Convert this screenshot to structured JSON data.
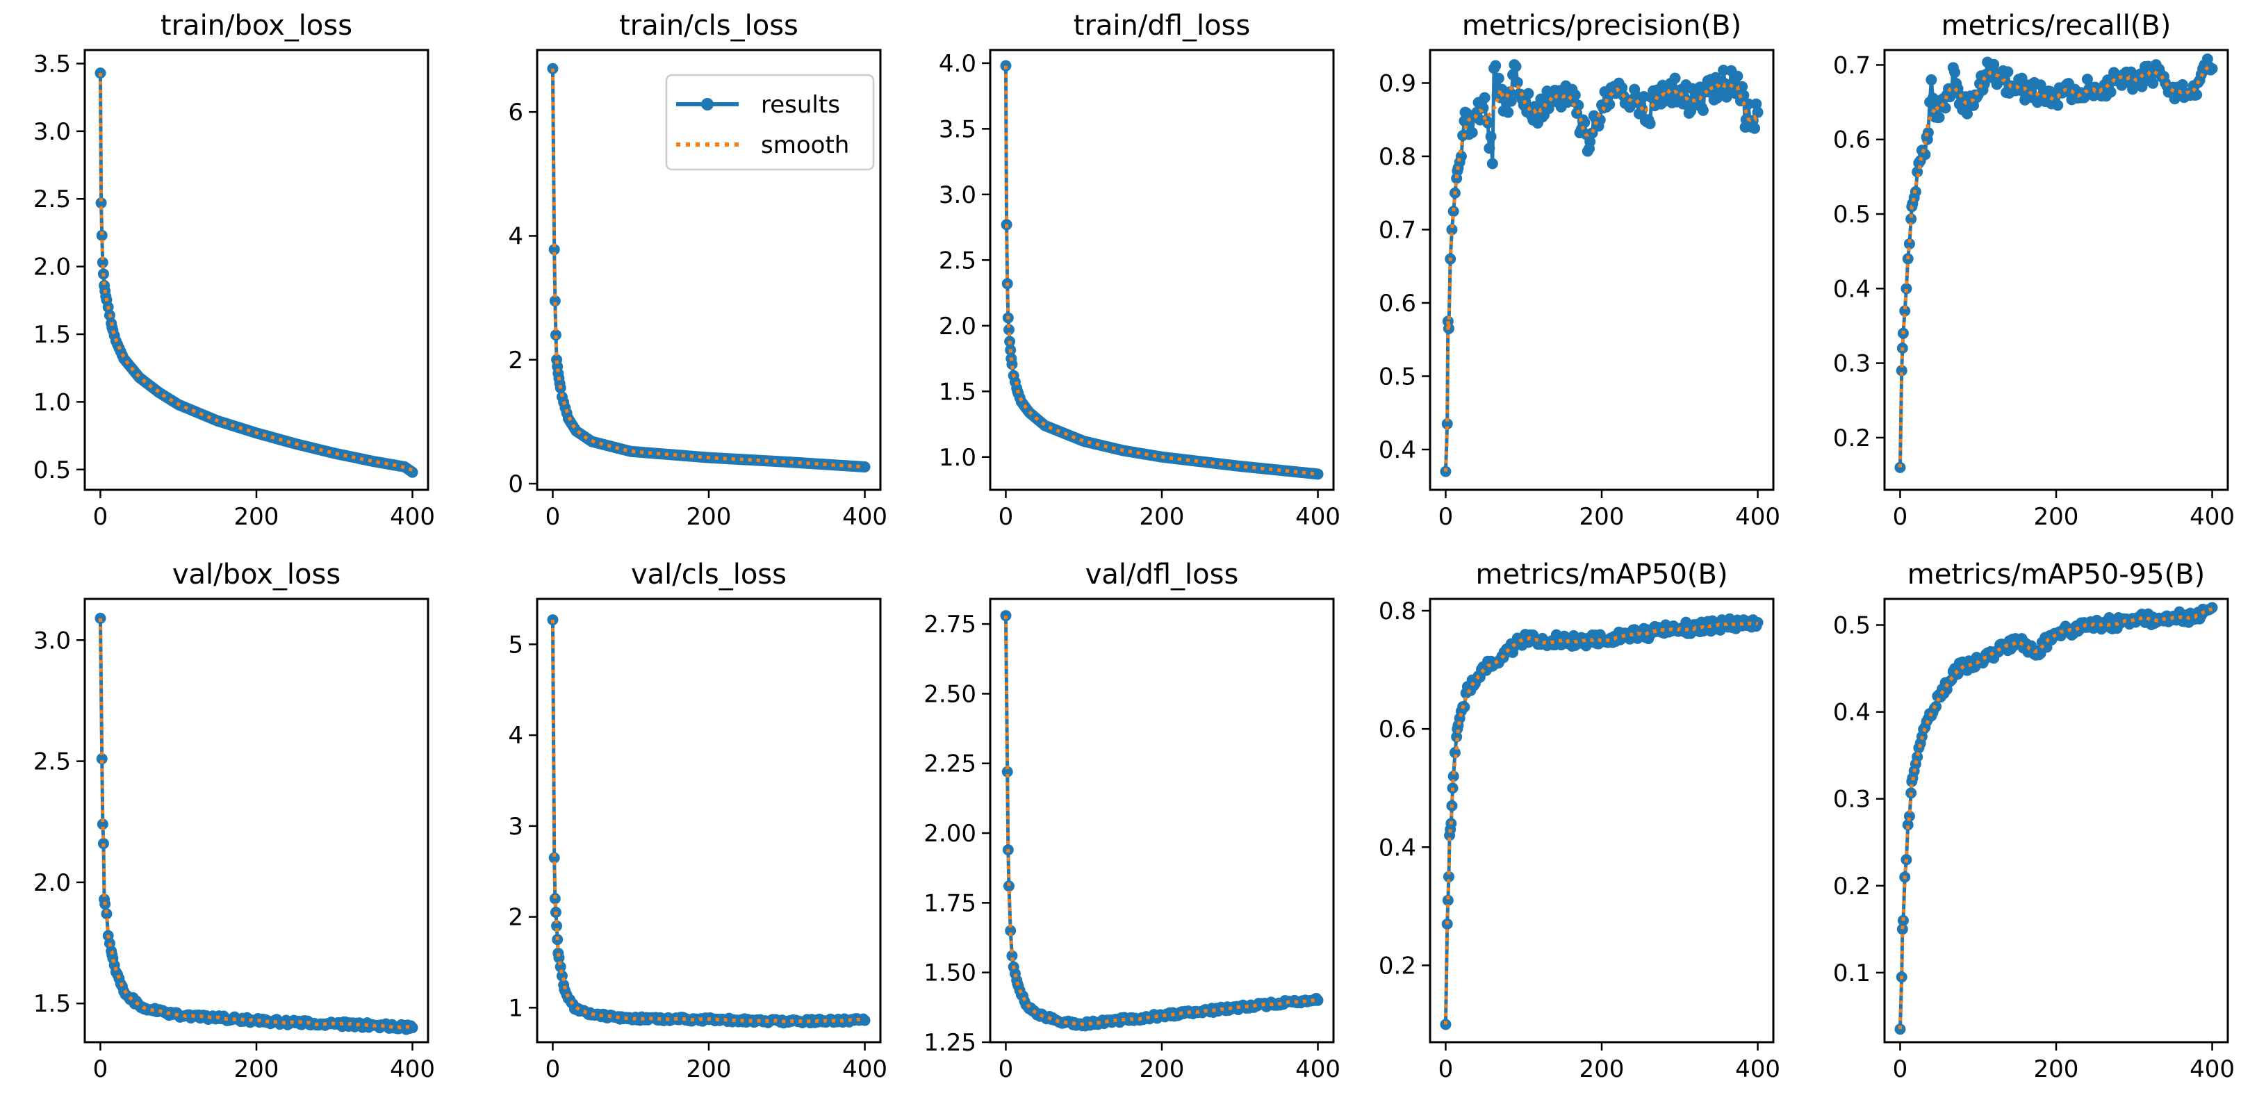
{
  "chart_data": [
    {
      "type": "line",
      "title": "train/box_loss",
      "xlim": [
        -20,
        420
      ],
      "ylim": [
        0.35,
        3.6
      ],
      "xticks": [
        0,
        200,
        400
      ],
      "yticks": [
        0.5,
        1.0,
        1.5,
        2.0,
        2.5,
        3.0,
        3.5
      ],
      "ydec": 1,
      "x": [
        0,
        1,
        2,
        3,
        5,
        7,
        10,
        15,
        20,
        30,
        50,
        75,
        100,
        150,
        200,
        250,
        300,
        350,
        390,
        400
      ],
      "y": [
        3.43,
        2.47,
        2.23,
        2.03,
        1.86,
        1.78,
        1.7,
        1.55,
        1.45,
        1.32,
        1.18,
        1.07,
        0.98,
        0.86,
        0.77,
        0.69,
        0.62,
        0.56,
        0.52,
        0.48
      ]
    },
    {
      "type": "line",
      "title": "train/cls_loss",
      "xlim": [
        -20,
        420
      ],
      "ylim": [
        -0.1,
        7.0
      ],
      "xticks": [
        0,
        200,
        400
      ],
      "yticks": [
        0,
        2,
        4,
        6
      ],
      "ydec": 0,
      "legend": true,
      "x": [
        0,
        2,
        3,
        4,
        5,
        7,
        9,
        12,
        20,
        30,
        50,
        100,
        200,
        300,
        400
      ],
      "y": [
        6.7,
        3.78,
        2.95,
        2.4,
        2.0,
        1.78,
        1.62,
        1.4,
        1.05,
        0.85,
        0.68,
        0.52,
        0.42,
        0.35,
        0.27
      ]
    },
    {
      "type": "line",
      "title": "train/dfl_loss",
      "xlim": [
        -20,
        420
      ],
      "ylim": [
        0.75,
        4.1
      ],
      "xticks": [
        0,
        200,
        400
      ],
      "yticks": [
        1.0,
        1.5,
        2.0,
        2.5,
        3.0,
        3.5,
        4.0
      ],
      "ydec": 1,
      "x": [
        0,
        1,
        2,
        3,
        5,
        7,
        10,
        15,
        20,
        30,
        50,
        100,
        150,
        200,
        300,
        400
      ],
      "y": [
        3.98,
        2.77,
        2.32,
        2.06,
        1.88,
        1.75,
        1.62,
        1.5,
        1.42,
        1.34,
        1.24,
        1.12,
        1.05,
        1.0,
        0.93,
        0.87
      ]
    },
    {
      "type": "line",
      "title": "metrics/precision(B)",
      "xlim": [
        -20,
        420
      ],
      "ylim": [
        0.345,
        0.945
      ],
      "xticks": [
        0,
        200,
        400
      ],
      "yticks": [
        0.4,
        0.5,
        0.6,
        0.7,
        0.8,
        0.9
      ],
      "ydec": 1,
      "noise": 0.02,
      "x": [
        0,
        2,
        3,
        4,
        6,
        8,
        10,
        12,
        15,
        20,
        25,
        30,
        40,
        50,
        60,
        62,
        70,
        80,
        88,
        100,
        120,
        140,
        160,
        180,
        185,
        200,
        220,
        250,
        260,
        270,
        300,
        320,
        350,
        380,
        385,
        400
      ],
      "y": [
        0.37,
        0.435,
        0.575,
        0.565,
        0.66,
        0.7,
        0.725,
        0.75,
        0.78,
        0.8,
        0.86,
        0.83,
        0.86,
        0.88,
        0.79,
        0.92,
        0.88,
        0.86,
        0.925,
        0.87,
        0.86,
        0.89,
        0.88,
        0.83,
        0.82,
        0.87,
        0.89,
        0.87,
        0.85,
        0.89,
        0.89,
        0.87,
        0.9,
        0.895,
        0.85,
        0.86
      ]
    },
    {
      "type": "line",
      "title": "metrics/recall(B)",
      "xlim": [
        -20,
        420
      ],
      "ylim": [
        0.13,
        0.72
      ],
      "xticks": [
        0,
        200,
        400
      ],
      "yticks": [
        0.2,
        0.3,
        0.4,
        0.5,
        0.6,
        0.7
      ],
      "ydec": 1,
      "noise": 0.015,
      "x": [
        0,
        2,
        3,
        4,
        6,
        8,
        10,
        12,
        15,
        20,
        25,
        30,
        35,
        40,
        45,
        60,
        70,
        80,
        100,
        115,
        130,
        150,
        200,
        250,
        300,
        330,
        350,
        380,
        390,
        400
      ],
      "y": [
        0.16,
        0.29,
        0.32,
        0.34,
        0.37,
        0.4,
        0.44,
        0.46,
        0.51,
        0.53,
        0.57,
        0.58,
        0.6,
        0.68,
        0.63,
        0.66,
        0.69,
        0.64,
        0.66,
        0.7,
        0.68,
        0.67,
        0.66,
        0.67,
        0.68,
        0.69,
        0.67,
        0.66,
        0.7,
        0.695
      ]
    },
    {
      "type": "line",
      "title": "val/box_loss",
      "xlim": [
        -20,
        420
      ],
      "ylim": [
        1.34,
        3.17
      ],
      "xticks": [
        0,
        200,
        400
      ],
      "yticks": [
        1.5,
        2.0,
        2.5,
        3.0
      ],
      "ydec": 1,
      "noise": 0.01,
      "x": [
        0,
        2,
        3,
        4,
        5,
        6,
        8,
        10,
        15,
        20,
        30,
        50,
        75,
        100,
        150,
        200,
        250,
        300,
        350,
        400
      ],
      "y": [
        3.09,
        2.51,
        2.24,
        2.16,
        1.93,
        1.91,
        1.87,
        1.78,
        1.7,
        1.63,
        1.55,
        1.49,
        1.47,
        1.45,
        1.44,
        1.43,
        1.42,
        1.415,
        1.41,
        1.4
      ]
    },
    {
      "type": "line",
      "title": "val/cls_loss",
      "xlim": [
        -20,
        420
      ],
      "ylim": [
        0.62,
        5.5
      ],
      "xticks": [
        0,
        200,
        400
      ],
      "yticks": [
        1,
        2,
        3,
        4,
        5
      ],
      "ydec": 0,
      "noise": 0.02,
      "x": [
        0,
        2,
        3,
        4,
        5,
        7,
        10,
        15,
        20,
        30,
        50,
        100,
        200,
        300,
        400
      ],
      "y": [
        5.27,
        2.65,
        2.2,
        2.05,
        1.9,
        1.6,
        1.45,
        1.2,
        1.1,
        0.98,
        0.92,
        0.88,
        0.87,
        0.85,
        0.86
      ]
    },
    {
      "type": "line",
      "title": "val/dfl_loss",
      "xlim": [
        -20,
        420
      ],
      "ylim": [
        1.25,
        2.84
      ],
      "xticks": [
        0,
        200,
        400
      ],
      "yticks": [
        1.25,
        1.5,
        1.75,
        2.0,
        2.25,
        2.5,
        2.75
      ],
      "ydec": 2,
      "noise": 0.008,
      "x": [
        0,
        2,
        3,
        4,
        6,
        8,
        10,
        15,
        20,
        30,
        50,
        75,
        100,
        150,
        200,
        250,
        300,
        350,
        400
      ],
      "y": [
        2.78,
        2.22,
        1.94,
        1.81,
        1.65,
        1.56,
        1.52,
        1.46,
        1.42,
        1.37,
        1.34,
        1.32,
        1.315,
        1.33,
        1.345,
        1.36,
        1.375,
        1.39,
        1.4
      ]
    },
    {
      "type": "line",
      "title": "metrics/mAP50(B)",
      "xlim": [
        -20,
        420
      ],
      "ylim": [
        0.07,
        0.82
      ],
      "xticks": [
        0,
        200,
        400
      ],
      "yticks": [
        0.2,
        0.4,
        0.6,
        0.8
      ],
      "ydec": 1,
      "noise": 0.01,
      "x": [
        0,
        2,
        3,
        4,
        5,
        7,
        9,
        12,
        15,
        20,
        30,
        50,
        75,
        100,
        150,
        200,
        250,
        300,
        350,
        400
      ],
      "y": [
        0.1,
        0.27,
        0.31,
        0.35,
        0.42,
        0.44,
        0.5,
        0.56,
        0.6,
        0.63,
        0.67,
        0.7,
        0.73,
        0.75,
        0.75,
        0.75,
        0.76,
        0.77,
        0.775,
        0.78
      ]
    },
    {
      "type": "line",
      "title": "metrics/mAP50-95(B)",
      "xlim": [
        -20,
        420
      ],
      "ylim": [
        0.02,
        0.53
      ],
      "xticks": [
        0,
        200,
        400
      ],
      "yticks": [
        0.1,
        0.2,
        0.3,
        0.4,
        0.5
      ],
      "ydec": 1,
      "noise": 0.007,
      "x": [
        0,
        2,
        3,
        4,
        6,
        8,
        10,
        12,
        15,
        20,
        30,
        50,
        75,
        100,
        150,
        175,
        200,
        250,
        300,
        350,
        380,
        400
      ],
      "y": [
        0.035,
        0.095,
        0.15,
        0.16,
        0.21,
        0.23,
        0.27,
        0.28,
        0.32,
        0.34,
        0.38,
        0.42,
        0.45,
        0.46,
        0.48,
        0.47,
        0.49,
        0.5,
        0.505,
        0.51,
        0.51,
        0.52
      ]
    }
  ],
  "legend": {
    "results": "results",
    "smooth": "smooth"
  },
  "colors": {
    "results": "#1f77b4",
    "smooth": "#ff7f0e"
  }
}
